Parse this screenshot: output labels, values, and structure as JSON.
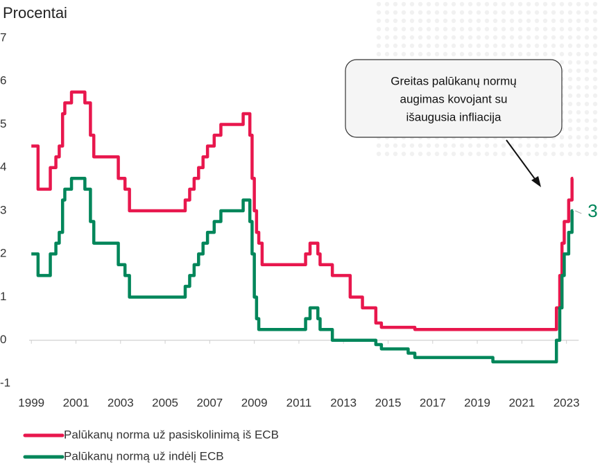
{
  "chart_data": {
    "type": "line",
    "title": "Procentai",
    "annotation": [
      "Greitas palūkanų normų",
      "augimas kovojant su",
      "išaugusia infliacija"
    ],
    "x": [
      1999.0,
      1999.3,
      1999.3,
      1999.85,
      1999.85,
      2000.1,
      2000.1,
      2000.25,
      2000.25,
      2000.4,
      2000.4,
      2000.5,
      2000.5,
      2000.8,
      2000.8,
      2001.4,
      2001.4,
      2001.65,
      2001.65,
      2001.8,
      2001.8,
      2002.9,
      2002.9,
      2003.2,
      2003.2,
      2003.4,
      2003.4,
      2005.9,
      2005.9,
      2006.1,
      2006.1,
      2006.3,
      2006.3,
      2006.5,
      2006.5,
      2006.7,
      2006.7,
      2006.9,
      2006.9,
      2007.2,
      2007.2,
      2007.5,
      2007.5,
      2008.5,
      2008.5,
      2008.8,
      2008.8,
      2008.9,
      2008.9,
      2009.0,
      2009.0,
      2009.1,
      2009.1,
      2009.2,
      2009.2,
      2009.35,
      2009.35,
      2011.3,
      2011.3,
      2011.5,
      2011.5,
      2011.85,
      2011.85,
      2011.95,
      2011.95,
      2012.5,
      2012.5,
      2013.3,
      2013.3,
      2013.85,
      2013.85,
      2014.45,
      2014.45,
      2014.7,
      2014.7,
      2015.9,
      2015.9,
      2016.2,
      2016.2,
      2019.7,
      2019.7,
      2022.55,
      2022.55,
      2022.7,
      2022.7,
      2022.8,
      2022.8,
      2022.9,
      2022.9,
      2023.1,
      2023.1,
      2023.25,
      2023.25,
      2023.3
    ],
    "series": [
      {
        "name": "Palūkanų norma už pasiskolinimą iš ECB",
        "color": "#e8174d",
        "values": [
          4.5,
          4.5,
          3.5,
          3.5,
          4,
          4,
          4.25,
          4.25,
          4.5,
          4.5,
          5.25,
          5.25,
          5.5,
          5.5,
          5.75,
          5.75,
          5.5,
          5.5,
          4.75,
          4.75,
          4.25,
          4.25,
          3.75,
          3.75,
          3.5,
          3.5,
          3,
          3,
          3.25,
          3.25,
          3.5,
          3.5,
          3.75,
          3.75,
          4,
          4,
          4.25,
          4.25,
          4.5,
          4.5,
          4.75,
          4.75,
          5,
          5,
          5.25,
          5.25,
          4.75,
          4.75,
          3.75,
          3.75,
          3,
          3,
          2.5,
          2.5,
          2.25,
          2.25,
          1.75,
          1.75,
          2,
          2,
          2.25,
          2.25,
          2,
          2,
          1.75,
          1.75,
          1.5,
          1.5,
          1,
          1,
          0.75,
          0.75,
          0.4,
          0.4,
          0.3,
          0.3,
          0.3,
          0.3,
          0.25,
          0.25,
          0.25,
          0.25,
          0.75,
          0.75,
          1.5,
          1.5,
          2.25,
          2.25,
          2.75,
          2.75,
          3.25,
          3.25,
          3.75,
          3.75
        ]
      },
      {
        "name": "Palūkanų normą už indėlį ECB",
        "color": "#00865a",
        "end_value": 3,
        "values": [
          2,
          2,
          1.5,
          1.5,
          2,
          2,
          2.25,
          2.25,
          2.5,
          2.5,
          3.25,
          3.25,
          3.5,
          3.5,
          3.75,
          3.75,
          3.5,
          3.5,
          2.75,
          2.75,
          2.25,
          2.25,
          1.75,
          1.75,
          1.5,
          1.5,
          1,
          1,
          1.25,
          1.25,
          1.5,
          1.5,
          1.75,
          1.75,
          2,
          2,
          2.25,
          2.25,
          2.5,
          2.5,
          2.75,
          2.75,
          3,
          3,
          3.25,
          3.25,
          2.75,
          2.75,
          2,
          2,
          1,
          1,
          0.5,
          0.5,
          0.25,
          0.25,
          0.25,
          0.25,
          0.5,
          0.5,
          0.75,
          0.75,
          0.5,
          0.5,
          0.25,
          0.25,
          0,
          0,
          0,
          0,
          0,
          0,
          -0.1,
          -0.1,
          -0.2,
          -0.2,
          -0.3,
          -0.3,
          -0.4,
          -0.4,
          -0.5,
          -0.5,
          0,
          0,
          0.75,
          0.75,
          1.5,
          1.5,
          2,
          2,
          2.5,
          2.5,
          3,
          3
        ]
      }
    ],
    "xlim": [
      1998.9,
      2024.1
    ],
    "xticks": [
      1999,
      2001,
      2003,
      2005,
      2007,
      2009,
      2011,
      2013,
      2015,
      2017,
      2019,
      2021,
      2023
    ],
    "ylim": [
      -1,
      7
    ],
    "yticks": [
      -1,
      0,
      1,
      2,
      3,
      4,
      5,
      6,
      7
    ],
    "grid": false,
    "legend": "bottom"
  }
}
